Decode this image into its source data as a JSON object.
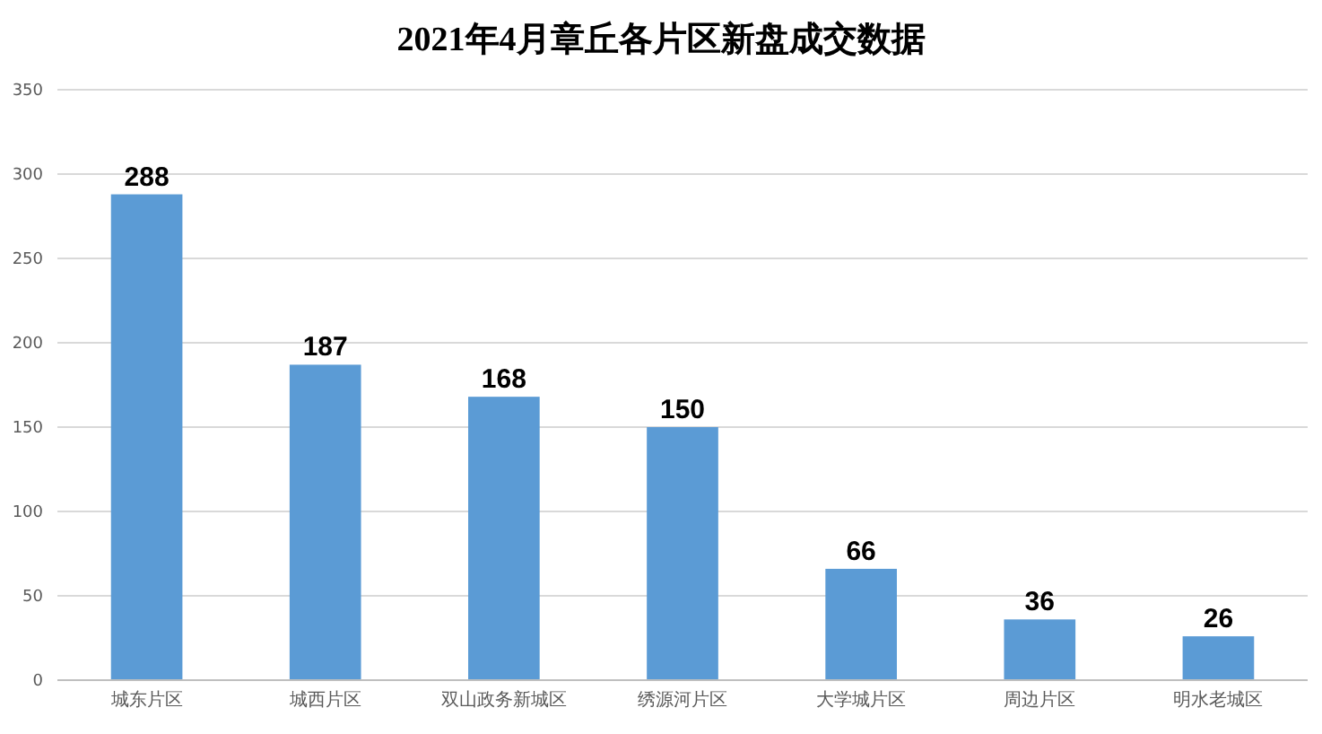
{
  "chart_data": {
    "type": "bar",
    "title": "2021年4月章丘各片区新盘成交数据",
    "categories": [
      "城东片区",
      "城西片区",
      "双山政务新城区",
      "绣源河片区",
      "大学城片区",
      "周边片区",
      "明水老城区"
    ],
    "values": [
      288,
      187,
      168,
      150,
      66,
      36,
      26
    ],
    "color": "#5b9bd5",
    "ylim": [
      0,
      350
    ],
    "yticks": [
      0,
      50,
      100,
      150,
      200,
      250,
      300,
      350
    ],
    "grid": "y",
    "data_labels": true
  }
}
